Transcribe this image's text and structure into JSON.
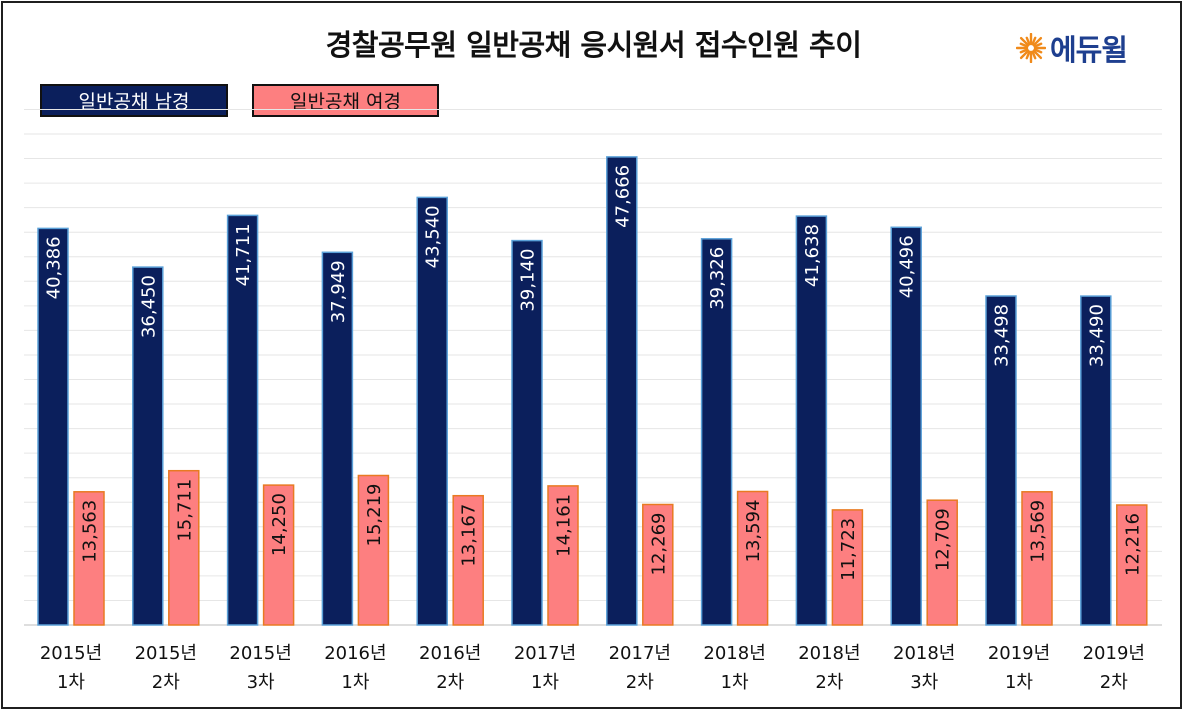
{
  "title": "경찰공무원 일반공채 응시원서 접수인원 추이",
  "logo": {
    "text": "에듀윌",
    "icon": "sun-burst-icon",
    "icon_color": "#f08a1a",
    "text_color": "#1e3f8f"
  },
  "colors": {
    "male": "#0b1f5c",
    "male_border": "#5aa0d8",
    "female": "#fd7f80",
    "female_border": "#e87a22",
    "grid": "#e6e6e6"
  },
  "chart_data": {
    "type": "bar",
    "title": "경찰공무원 일반공채 응시원서 접수인원 추이",
    "xlabel": "",
    "ylabel": "",
    "ylim": [
      0,
      55000
    ],
    "grid": true,
    "legend_position": "top-left",
    "categories": [
      [
        "2015년",
        "1차"
      ],
      [
        "2015년",
        "2차"
      ],
      [
        "2015년",
        "3차"
      ],
      [
        "2016년",
        "1차"
      ],
      [
        "2016년",
        "2차"
      ],
      [
        "2017년",
        "1차"
      ],
      [
        "2017년",
        "2차"
      ],
      [
        "2018년",
        "1차"
      ],
      [
        "2018년",
        "2차"
      ],
      [
        "2018년",
        "3차"
      ],
      [
        "2019년",
        "1차"
      ],
      [
        "2019년",
        "2차"
      ]
    ],
    "series": [
      {
        "name": "일반공채 남경",
        "values": [
          40386,
          36450,
          41711,
          37949,
          43540,
          39140,
          47666,
          39326,
          41638,
          40496,
          33498,
          33490
        ],
        "labels": [
          "40,386",
          "36,450",
          "41,711",
          "37,949",
          "43,540",
          "39,140",
          "47,666",
          "39,326",
          "41,638",
          "40,496",
          "33,498",
          "33,490"
        ]
      },
      {
        "name": "일반공채 여경",
        "values": [
          13563,
          15711,
          14250,
          15219,
          13167,
          14161,
          12269,
          13594,
          11723,
          12709,
          13569,
          12216
        ],
        "labels": [
          "13,563",
          "15,711",
          "14,250",
          "15,219",
          "13,167",
          "14,161",
          "12,269",
          "13,594",
          "11,723",
          "12,709",
          "13,569",
          "12,216"
        ]
      }
    ]
  }
}
